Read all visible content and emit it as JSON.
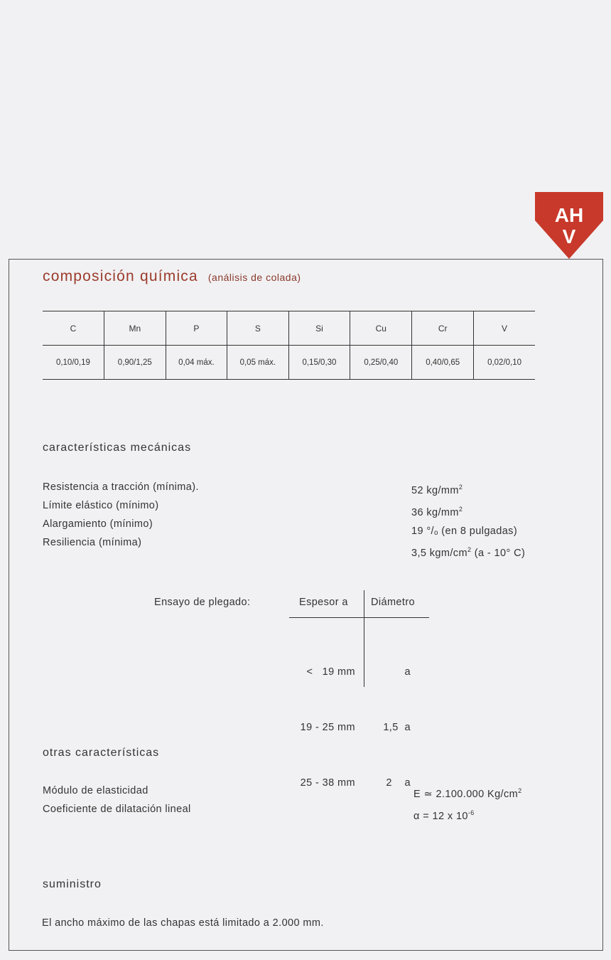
{
  "logo": {
    "line1": "AH",
    "line2": "V",
    "color": "#c8392b"
  },
  "composition": {
    "title": "composición química",
    "subtitle": "(análisis de colada)",
    "headers": [
      "C",
      "Mn",
      "P",
      "S",
      "Si",
      "Cu",
      "Cr",
      "V"
    ],
    "values": [
      "0,10/0,19",
      "0,90/1,25",
      "0,04 máx.",
      "0,05 máx.",
      "0,15/0,30",
      "0,25/0,40",
      "0,40/0,65",
      "0,02/0,10"
    ]
  },
  "mechanical": {
    "title": "características mecánicas",
    "rows": [
      {
        "label": "Resistencia a tracción (mínima).",
        "value": "52 kg/mm",
        "sup": "2",
        "tail": ""
      },
      {
        "label": "Límite elástico (mínimo)",
        "value": "36 kg/mm",
        "sup": "2",
        "tail": ""
      },
      {
        "label": "Alargamiento (mínimo)",
        "value": "19 °/ₒ (en 8 pulgadas)",
        "sup": "",
        "tail": ""
      },
      {
        "label": "Resiliencia (mínima)",
        "value": "3,5 kgm/cm",
        "sup": "2",
        "tail": " (a - 10° C)"
      }
    ]
  },
  "bend_test": {
    "label": "Ensayo de plegado:",
    "col1": "Espesor a",
    "col2": "Diámetro",
    "rows": [
      {
        "thickness": "<   19 mm",
        "diameter": "a"
      },
      {
        "thickness": "19 - 25 mm",
        "diameter": "1,5  a"
      },
      {
        "thickness": "25 - 38 mm",
        "diameter": "2    a"
      }
    ]
  },
  "other": {
    "title": "otras características",
    "rows": [
      {
        "label": "Módulo de elasticidad",
        "value": "E ≃ 2.100.000 Kg/cm",
        "sup": "2"
      },
      {
        "label": "Coeficiente de dilatación lineal",
        "value": "α = 12 x 10",
        "sup": "-6"
      }
    ]
  },
  "supply": {
    "title": "suministro",
    "text": "El ancho máximo de las chapas está limitado a 2.000 mm."
  }
}
